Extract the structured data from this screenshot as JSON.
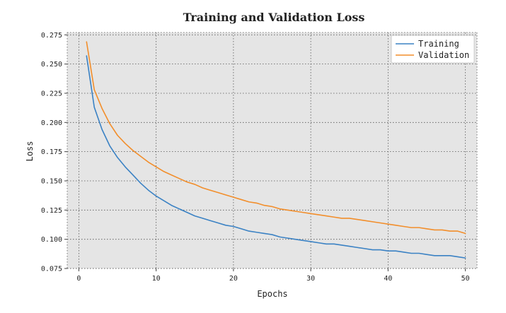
{
  "chart_data": {
    "type": "line",
    "title": "Training and Validation Loss",
    "xlabel": "Epochs",
    "ylabel": "Loss",
    "xlim": [
      -1.5,
      51.5
    ],
    "ylim": [
      0.075,
      0.277
    ],
    "xticks": [
      0,
      10,
      20,
      30,
      40,
      50
    ],
    "yticks": [
      0.075,
      0.1,
      0.125,
      0.15,
      0.175,
      0.2,
      0.225,
      0.25,
      0.275
    ],
    "xtick_labels": [
      "0",
      "10",
      "20",
      "30",
      "40",
      "50"
    ],
    "ytick_labels": [
      "0.075",
      "0.100",
      "0.125",
      "0.150",
      "0.175",
      "0.200",
      "0.225",
      "0.250",
      "0.275"
    ],
    "grid": true,
    "background": "#e5e5e5",
    "legend_position": "top-right",
    "x": [
      1,
      2,
      3,
      4,
      5,
      6,
      7,
      8,
      9,
      10,
      11,
      12,
      13,
      14,
      15,
      16,
      17,
      18,
      19,
      20,
      21,
      22,
      23,
      24,
      25,
      26,
      27,
      28,
      29,
      30,
      31,
      32,
      33,
      34,
      35,
      36,
      37,
      38,
      39,
      40,
      41,
      42,
      43,
      44,
      45,
      46,
      47,
      48,
      49,
      50
    ],
    "series": [
      {
        "name": "Training",
        "color": "#3b82c4",
        "values": [
          0.257,
          0.213,
          0.194,
          0.18,
          0.17,
          0.162,
          0.155,
          0.148,
          0.142,
          0.137,
          0.133,
          0.129,
          0.126,
          0.123,
          0.12,
          0.118,
          0.116,
          0.114,
          0.112,
          0.111,
          0.109,
          0.107,
          0.106,
          0.105,
          0.104,
          0.102,
          0.101,
          0.1,
          0.099,
          0.098,
          0.097,
          0.096,
          0.096,
          0.095,
          0.094,
          0.093,
          0.092,
          0.091,
          0.091,
          0.09,
          0.09,
          0.089,
          0.088,
          0.088,
          0.087,
          0.086,
          0.086,
          0.086,
          0.085,
          0.084
        ]
      },
      {
        "name": "Validation",
        "color": "#f28e2b",
        "values": [
          0.269,
          0.228,
          0.212,
          0.199,
          0.189,
          0.182,
          0.176,
          0.171,
          0.166,
          0.162,
          0.158,
          0.155,
          0.152,
          0.149,
          0.147,
          0.144,
          0.142,
          0.14,
          0.138,
          0.136,
          0.134,
          0.132,
          0.131,
          0.129,
          0.128,
          0.126,
          0.125,
          0.124,
          0.123,
          0.122,
          0.121,
          0.12,
          0.119,
          0.118,
          0.118,
          0.117,
          0.116,
          0.115,
          0.114,
          0.113,
          0.112,
          0.111,
          0.11,
          0.11,
          0.109,
          0.108,
          0.108,
          0.107,
          0.107,
          0.105
        ]
      }
    ]
  }
}
